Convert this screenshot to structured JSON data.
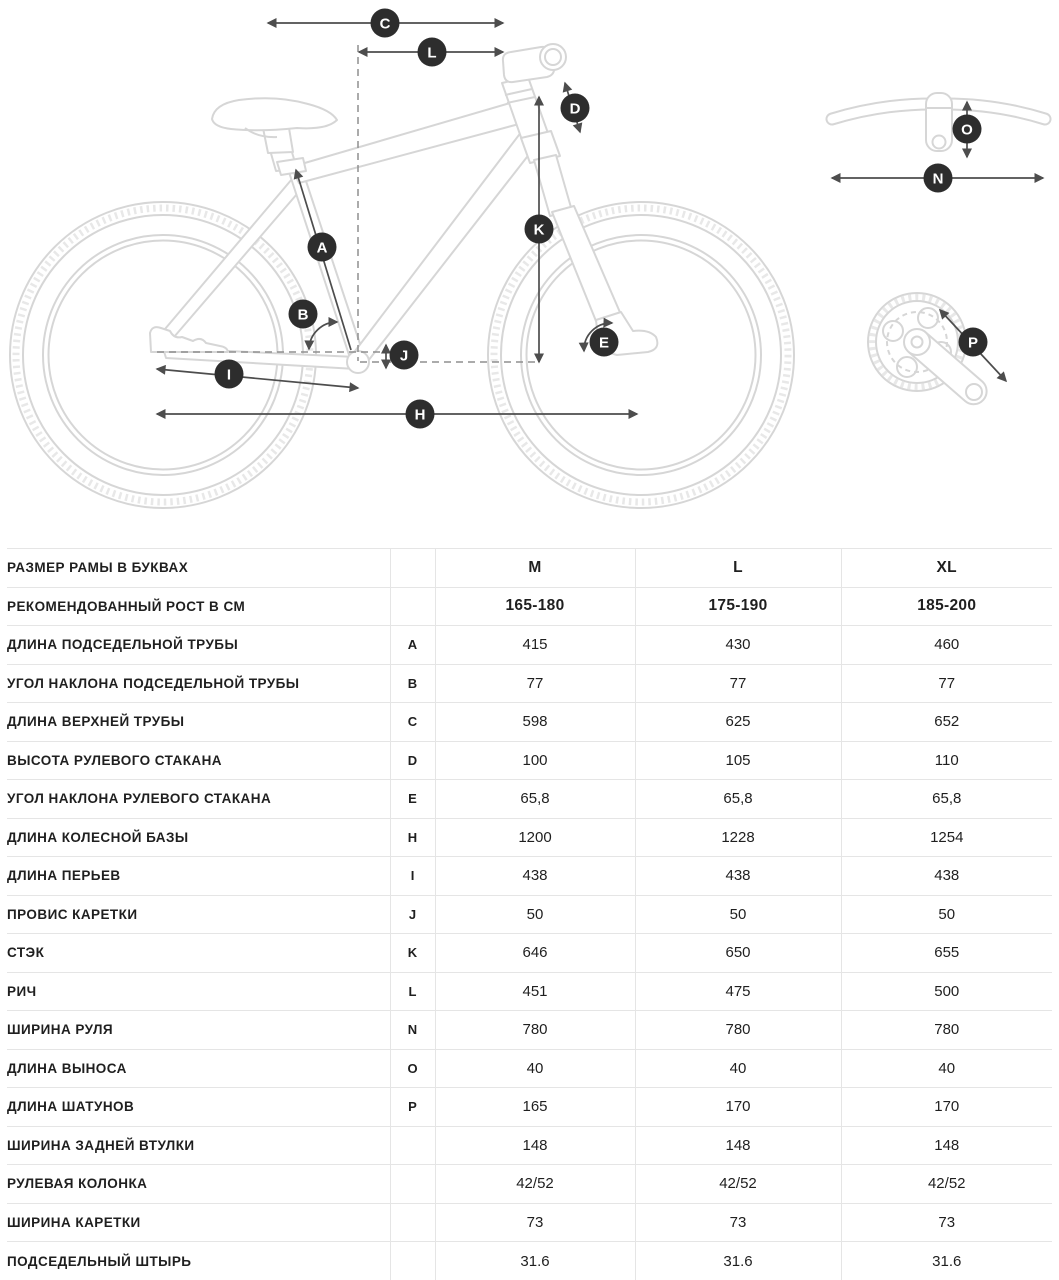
{
  "diagram": {
    "markers": {
      "A": "A",
      "B": "B",
      "C": "C",
      "D": "D",
      "E": "E",
      "H": "H",
      "I": "I",
      "J": "J",
      "K": "K",
      "L": "L",
      "N": "N",
      "O": "O",
      "P": "P"
    },
    "colors": {
      "bike_outline": "#d6d6d6",
      "dimension_arrows": "#4d4d4d",
      "marker_background": "#2d2d2d",
      "marker_text": "#ffffff",
      "table_border": "#e5e5e5"
    }
  },
  "table": {
    "columns": [
      "M",
      "L",
      "XL"
    ],
    "rows": [
      {
        "label": "РАЗМЕР РАМЫ В БУКВАХ",
        "letter": "",
        "values": [
          "M",
          "L",
          "XL"
        ],
        "bold": true
      },
      {
        "label": "РЕКОМЕНДОВАННЫЙ РОСТ В СМ",
        "letter": "",
        "values": [
          "165-180",
          "175-190",
          "185-200"
        ],
        "bold": true
      },
      {
        "label": "ДЛИНА ПОДСЕДЕЛЬНОЙ ТРУБЫ",
        "letter": "A",
        "values": [
          "415",
          "430",
          "460"
        ]
      },
      {
        "label": "УГОЛ НАКЛОНА ПОДСЕДЕЛЬНОЙ ТРУБЫ",
        "letter": "B",
        "values": [
          "77",
          "77",
          "77"
        ]
      },
      {
        "label": "ДЛИНА ВЕРХНЕЙ ТРУБЫ",
        "letter": "C",
        "values": [
          "598",
          "625",
          "652"
        ]
      },
      {
        "label": "ВЫСОТА РУЛЕВОГО СТАКАНА",
        "letter": "D",
        "values": [
          "100",
          "105",
          "110"
        ]
      },
      {
        "label": "УГОЛ НАКЛОНА РУЛЕВОГО СТАКАНА",
        "letter": "E",
        "values": [
          "65,8",
          "65,8",
          "65,8"
        ]
      },
      {
        "label": "ДЛИНА КОЛЕСНОЙ БАЗЫ",
        "letter": "H",
        "values": [
          "1200",
          "1228",
          "1254"
        ]
      },
      {
        "label": "ДЛИНА ПЕРЬЕВ",
        "letter": "I",
        "values": [
          "438",
          "438",
          "438"
        ]
      },
      {
        "label": "ПРОВИС КАРЕТКИ",
        "letter": "J",
        "values": [
          "50",
          "50",
          "50"
        ]
      },
      {
        "label": "СТЭК",
        "letter": "K",
        "values": [
          "646",
          "650",
          "655"
        ]
      },
      {
        "label": "РИЧ",
        "letter": "L",
        "values": [
          "451",
          "475",
          "500"
        ]
      },
      {
        "label": "ШИРИНА РУЛЯ",
        "letter": "N",
        "values": [
          "780",
          "780",
          "780"
        ]
      },
      {
        "label": "ДЛИНА ВЫНОСА",
        "letter": "O",
        "values": [
          "40",
          "40",
          "40"
        ]
      },
      {
        "label": "ДЛИНА ШАТУНОВ",
        "letter": "P",
        "values": [
          "165",
          "170",
          "170"
        ]
      },
      {
        "label": "ШИРИНА ЗАДНЕЙ ВТУЛКИ",
        "letter": "",
        "values": [
          "148",
          "148",
          "148"
        ]
      },
      {
        "label": "РУЛЕВАЯ КОЛОНКА",
        "letter": "",
        "values": [
          "42/52",
          "42/52",
          "42/52"
        ]
      },
      {
        "label": "ШИРИНА КАРЕТКИ",
        "letter": "",
        "values": [
          "73",
          "73",
          "73"
        ]
      },
      {
        "label": "ПОДСЕДЕЛЬНЫЙ ШТЫРЬ",
        "letter": "",
        "values": [
          "31.6",
          "31.6",
          "31.6"
        ]
      }
    ]
  }
}
